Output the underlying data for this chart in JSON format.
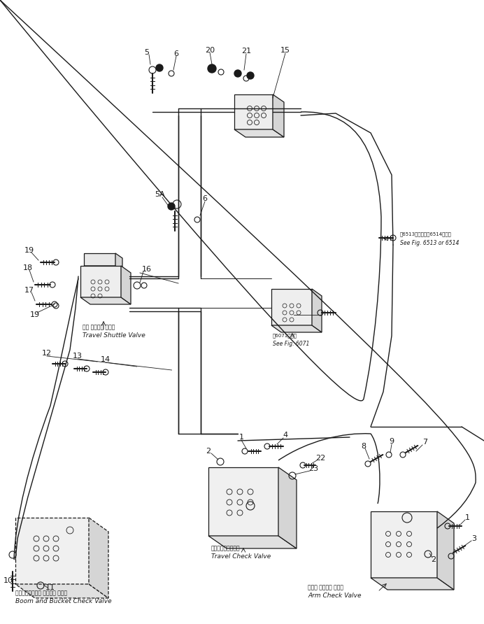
{
  "bg_color": "#ffffff",
  "lc": "#1a1a1a",
  "fig_width": 6.92,
  "fig_height": 8.92,
  "labels": {
    "travel_shuttle_valve_jp": "走行 シャトル バルブ",
    "travel_shuttle_valve_en": "Travel Shuttle Valve",
    "boom_bucket_check_jp": "ブーム、バケット チェック バルブ",
    "boom_bucket_check_en": "Boom and Bucket Check Valve",
    "travel_check_jp": "走行チェックバルブ",
    "travel_check_en": "Travel Check Valve",
    "arm_check_jp": "アーム チェック バルブ",
    "arm_check_en": "Arm Check Valve",
    "see_fig_6513_jp": "第6513図または第6514図参照",
    "see_fig_6513_en": "See Fig. 6513 or 6514",
    "see_fig_6071_jp": "第6071図参照",
    "see_fig_6071_en": "See Fig. 6071"
  }
}
